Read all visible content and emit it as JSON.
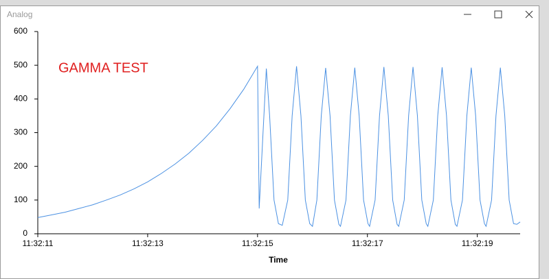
{
  "window": {
    "title": "Analog"
  },
  "chart_data": {
    "type": "line",
    "annotation": "GAMMA TEST",
    "x_label": "Time",
    "x": [
      41531,
      41531.25,
      41531.5,
      41531.75,
      41532,
      41532.25,
      41532.5,
      41532.75,
      41533,
      41533.25,
      41533.5,
      41533.75,
      41534,
      41534.25,
      41534.5,
      41534.75,
      41535,
      41535.03,
      41535.1,
      41535.16,
      41535.22,
      41535.3,
      41535.38,
      41535.45,
      41535.55,
      41535.63,
      41535.71,
      41535.79,
      41535.87,
      41535.95,
      41536,
      41536.08,
      41536.16,
      41536.24,
      41536.32,
      41536.4,
      41536.48,
      41536.51,
      41536.61,
      41536.69,
      41536.77,
      41536.85,
      41536.93,
      41537.01,
      41537.04,
      41537.14,
      41537.22,
      41537.3,
      41537.38,
      41537.46,
      41537.54,
      41537.57,
      41537.67,
      41537.75,
      41537.83,
      41537.91,
      41537.99,
      41538.07,
      41538.1,
      41538.2,
      41538.28,
      41538.36,
      41538.44,
      41538.52,
      41538.6,
      41538.63,
      41538.73,
      41538.81,
      41538.89,
      41538.97,
      41539.05,
      41539.13,
      41539.16,
      41539.26,
      41539.34,
      41539.42,
      41539.5,
      41539.58,
      41539.66,
      41539.72,
      41539.78
    ],
    "series": [
      {
        "name": "Analog",
        "color": "#4a90e2",
        "values": [
          48,
          56,
          64,
          75,
          86,
          100,
          115,
          133,
          154,
          179,
          207,
          239,
          277,
          320,
          371,
          429,
          497,
          75,
          300,
          490,
          350,
          100,
          30,
          25,
          100,
          350,
          497,
          350,
          100,
          30,
          22,
          100,
          350,
          492,
          350,
          100,
          28,
          22,
          100,
          350,
          493,
          350,
          100,
          30,
          22,
          100,
          350,
          495,
          350,
          100,
          28,
          22,
          100,
          350,
          495,
          350,
          100,
          30,
          22,
          100,
          350,
          494,
          350,
          100,
          28,
          22,
          100,
          350,
          493,
          350,
          100,
          30,
          22,
          100,
          350,
          493,
          350,
          100,
          30,
          28,
          35
        ]
      }
    ],
    "xlim": [
      41531,
      41539.78
    ],
    "xticks": [
      {
        "value": 41531,
        "label": "11:32:11"
      },
      {
        "value": 41533,
        "label": "11:32:13"
      },
      {
        "value": 41535,
        "label": "11:32:15"
      },
      {
        "value": 41537,
        "label": "11:32:17"
      },
      {
        "value": 41539,
        "label": "11:32:19"
      }
    ],
    "ylim": [
      0,
      600
    ],
    "yticks": [
      0,
      100,
      200,
      300,
      400,
      500,
      600
    ],
    "annotation_color": "#e02020"
  }
}
